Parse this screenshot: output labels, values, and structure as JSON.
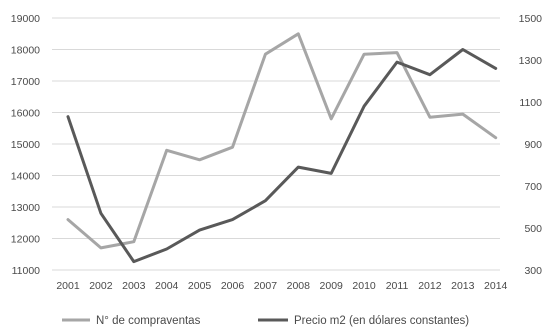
{
  "chart_data": {
    "type": "line",
    "categories": [
      "2001",
      "2002",
      "2003",
      "2004",
      "2005",
      "2006",
      "2007",
      "2008",
      "2009",
      "2010",
      "2011",
      "2012",
      "2013",
      "2014"
    ],
    "series": [
      {
        "name": "N° de compraventas",
        "axis": "left",
        "color": "#a6a6a6",
        "values": [
          12600,
          11700,
          11900,
          14800,
          14500,
          14900,
          17850,
          18500,
          15800,
          17850,
          17900,
          15850,
          15950,
          15200
        ]
      },
      {
        "name": "Precio m2 (en dólares constantes)",
        "axis": "right",
        "color": "#595959",
        "values": [
          1030,
          570,
          340,
          400,
          490,
          540,
          630,
          790,
          760,
          1080,
          1290,
          1230,
          1350,
          1260
        ]
      }
    ],
    "y_left": {
      "ylim": [
        11000,
        19000
      ],
      "ticks": [
        "11000",
        "12000",
        "13000",
        "14000",
        "15000",
        "16000",
        "17000",
        "18000",
        "19000"
      ]
    },
    "y_right": {
      "ylim": [
        300,
        1500
      ],
      "ticks": [
        "300",
        "500",
        "700",
        "900",
        "1100",
        "1300",
        "1500"
      ]
    },
    "grid": "horizontal",
    "grid_color": "#d9d9d9",
    "legend": "bottom",
    "title": "",
    "xlabel": "",
    "ylabel": ""
  }
}
